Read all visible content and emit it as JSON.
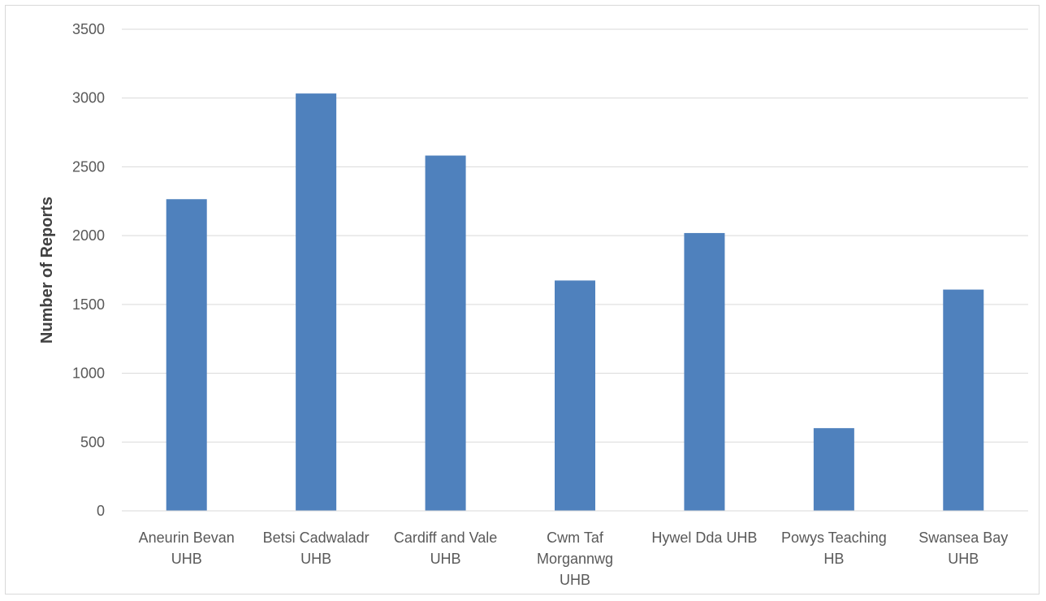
{
  "chart_data": {
    "type": "bar",
    "title": "",
    "xlabel": "",
    "ylabel": "Number of Reports",
    "ylim": [
      0,
      3500
    ],
    "yticks": [
      0,
      500,
      1000,
      1500,
      2000,
      2500,
      3000,
      3500
    ],
    "grid": true,
    "legend": "none",
    "bar_color": "#4f81bd",
    "categories": [
      [
        "Aneurin Bevan",
        "UHB"
      ],
      [
        "Betsi Cadwaladr",
        "UHB"
      ],
      [
        "Cardiff and Vale",
        "UHB"
      ],
      [
        "Cwm Taf",
        "Morgannwg",
        "UHB"
      ],
      [
        "Hywel Dda UHB"
      ],
      [
        "Powys Teaching",
        "HB"
      ],
      [
        "Swansea Bay",
        "UHB"
      ]
    ],
    "values": [
      2265,
      3033,
      2582,
      1674,
      2019,
      601,
      1608
    ]
  }
}
